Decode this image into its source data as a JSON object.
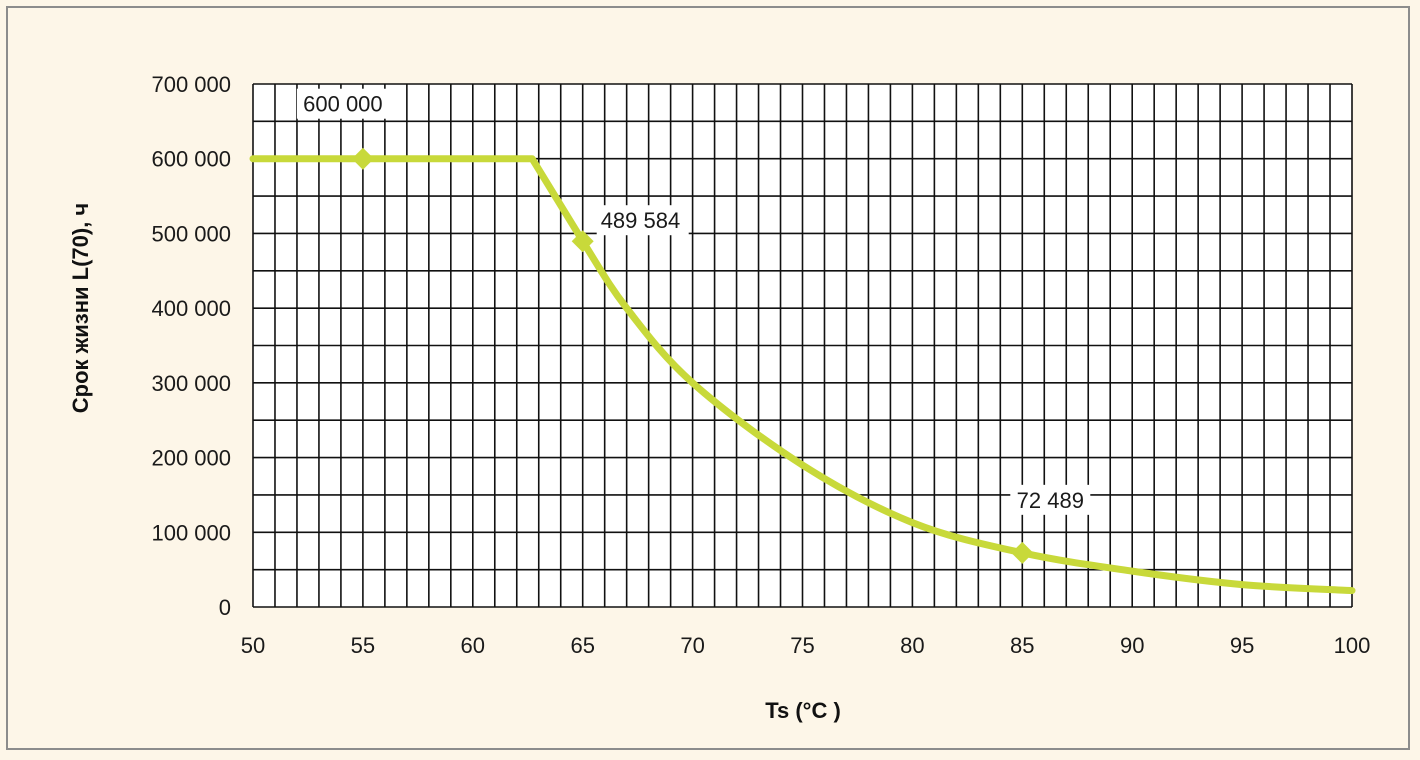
{
  "chart_data": {
    "type": "line",
    "xlabel": "Ts (°C )",
    "ylabel": "Срок жизни L(70), ч",
    "xlim": [
      50,
      100
    ],
    "ylim": [
      0,
      700000
    ],
    "x_ticks": [
      "50",
      "55",
      "60",
      "65",
      "70",
      "75",
      "80",
      "85",
      "90",
      "95",
      "100"
    ],
    "y_ticks": [
      "0",
      "100 000",
      "200 000",
      "300 000",
      "400 000",
      "500 000",
      "600 000",
      "700 000"
    ],
    "grid": true,
    "line_color": "#c8d93a",
    "series": [
      {
        "x": [
          50,
          55,
          62.7,
          65,
          67,
          70,
          75,
          80,
          85,
          90,
          95,
          100
        ],
        "y": [
          600000,
          600000,
          600000,
          489584,
          400000,
          300000,
          190000,
          113000,
          72489,
          48000,
          30000,
          22000
        ]
      }
    ],
    "markers": [
      {
        "x": 55,
        "y": 600000,
        "label": "600 000"
      },
      {
        "x": 65,
        "y": 489584,
        "label": "489 584"
      },
      {
        "x": 85,
        "y": 72489,
        "label": "72 489"
      }
    ]
  }
}
